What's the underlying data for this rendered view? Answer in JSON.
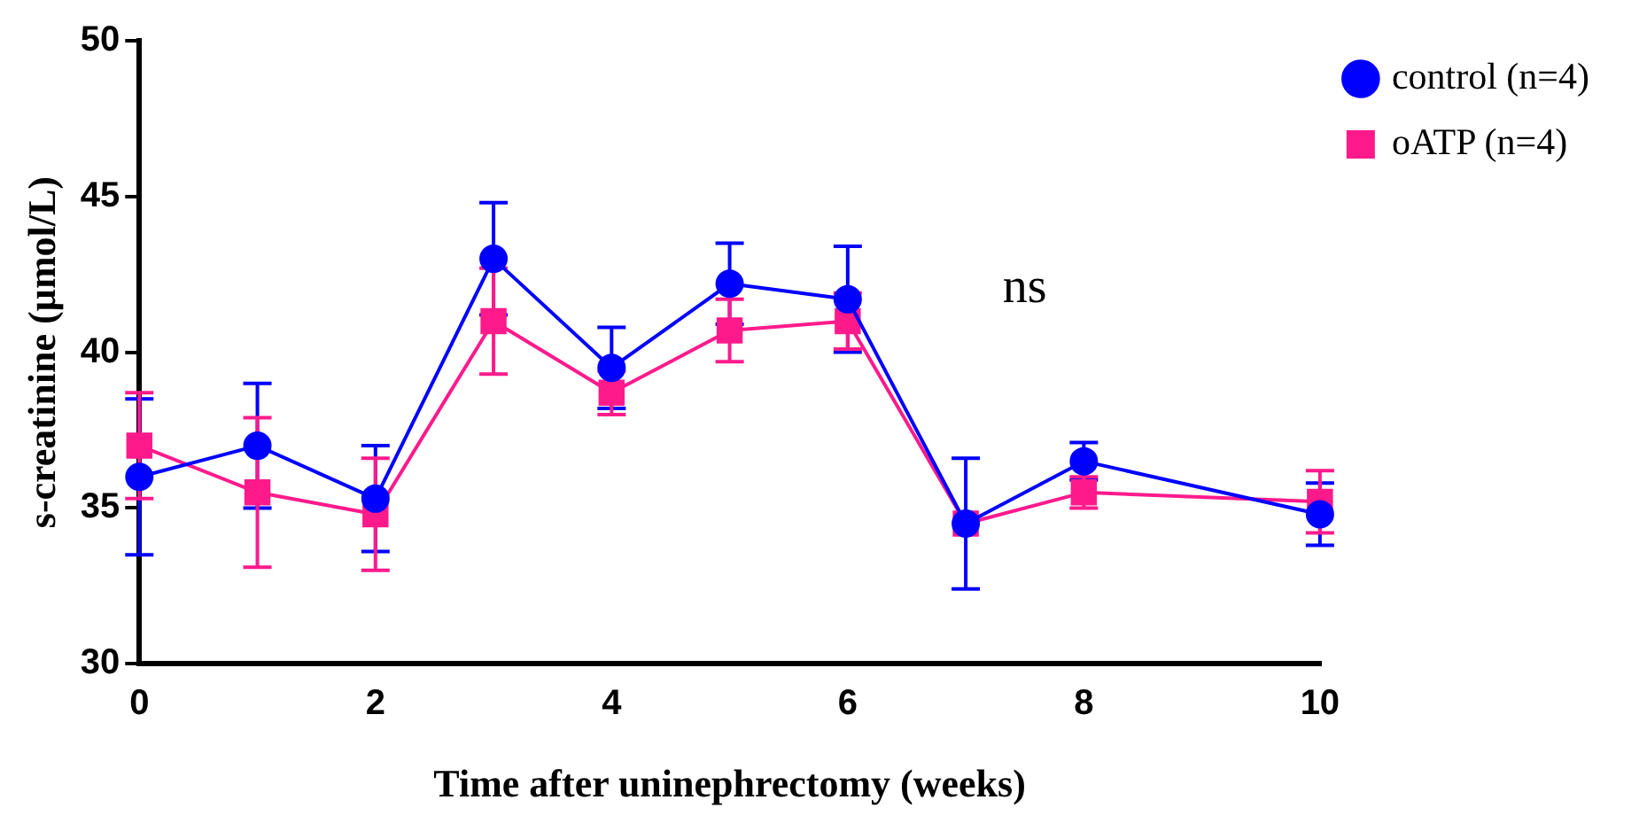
{
  "chart_data": {
    "type": "line",
    "xlabel": "Time after uninephrectomy (weeks)",
    "ylabel": "s-creatinine (µmol/L)",
    "annotations": [
      "ns"
    ],
    "x": [
      0,
      1,
      2,
      3,
      4,
      5,
      6,
      7,
      8,
      10
    ],
    "series": [
      {
        "name": "control (n=4)",
        "color": "#0000ff",
        "marker": "circle",
        "values": [
          36.0,
          37.0,
          35.3,
          43.0,
          39.5,
          42.2,
          41.7,
          34.5,
          36.5,
          34.8
        ],
        "errors": [
          2.5,
          2.0,
          1.7,
          1.8,
          1.3,
          1.3,
          1.7,
          2.1,
          0.6,
          1.0
        ]
      },
      {
        "name": "oATP (n=4)",
        "color": "#ff1a8c",
        "marker": "square",
        "values": [
          37.0,
          35.5,
          34.8,
          41.0,
          38.7,
          40.7,
          41.0,
          34.5,
          35.5,
          35.2
        ],
        "errors": [
          1.7,
          2.4,
          1.8,
          1.7,
          0.7,
          1.0,
          0.9,
          null,
          0.5,
          1.0
        ]
      }
    ],
    "xlim": [
      0,
      10
    ],
    "xticks": [
      0,
      2,
      4,
      6,
      8,
      10
    ],
    "ylim": [
      30,
      50
    ],
    "yticks": [
      30,
      35,
      40,
      45,
      50
    ],
    "grid": false,
    "legend": "top right"
  }
}
